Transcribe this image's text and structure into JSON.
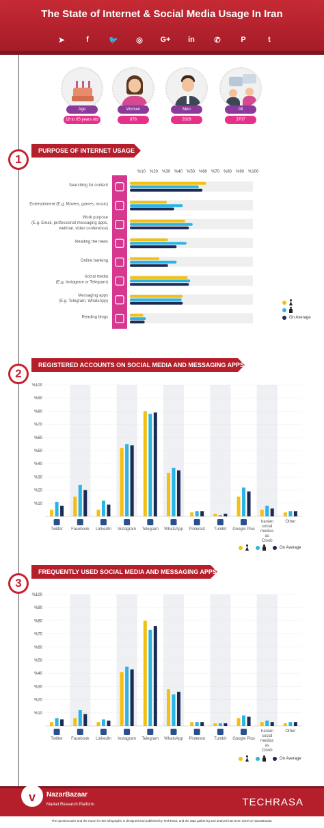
{
  "header": {
    "title": "The State of Internet & Social Media Usage In Iran",
    "social_icons": [
      {
        "name": "telegram-icon",
        "glyph": "➤"
      },
      {
        "name": "facebook-icon",
        "glyph": "f"
      },
      {
        "name": "twitter-icon",
        "glyph": "🐦"
      },
      {
        "name": "instagram-icon",
        "glyph": "◎"
      },
      {
        "name": "google-plus-icon",
        "glyph": "G+"
      },
      {
        "name": "linkedin-icon",
        "glyph": "in"
      },
      {
        "name": "whatsapp-icon",
        "glyph": "✆"
      },
      {
        "name": "pinterest-icon",
        "glyph": "P"
      },
      {
        "name": "tumblr-icon",
        "glyph": "t"
      }
    ]
  },
  "demographics": [
    {
      "label": "Age",
      "value": "18 to 65 years old",
      "icon": "cake-icon"
    },
    {
      "label": "Women",
      "value": "878",
      "icon": "woman-icon"
    },
    {
      "label": "Men",
      "value": "2829",
      "icon": "man-icon"
    },
    {
      "label": "All",
      "value": "3707",
      "icon": "group-icon"
    }
  ],
  "colors": {
    "women": "#f2c012",
    "men": "#2ab4e4",
    "average": "#1b2a55",
    "brand_red": "#b51f2b",
    "purpose_strip": "#d6378f"
  },
  "sections": [
    {
      "number": "1",
      "title": "PURPOSE OF INTERNET USAGE"
    },
    {
      "number": "2",
      "title": "REGISTERED ACCOUNTS ON SOCIAL MEDIA AND MESSAGING APPS"
    },
    {
      "number": "3",
      "title": "FREQUENTLY USED SOCIAL MEDIA AND MESSAGING APPS"
    }
  ],
  "legend": {
    "average_label": "On Average"
  },
  "chart_data": [
    {
      "type": "bar",
      "orientation": "horizontal",
      "axis_ticks": [
        "%10",
        "%20",
        "%30",
        "%40",
        "%50",
        "%60",
        "%70",
        "%80",
        "%90",
        "%100"
      ],
      "xlim": [
        0,
        100
      ],
      "categories": [
        [
          "Searching for content"
        ],
        [
          "Entertainment (E.g. Movies, games, music)"
        ],
        [
          "Work purpose",
          "(E.g. Email, professional messaging apps,",
          "webinar, video conference)"
        ],
        [
          "Reading the news"
        ],
        [
          "Online banking"
        ],
        [
          "Social media",
          "(E.g. Instagram or Telegram)"
        ],
        [
          "Messaging apps",
          "(E.g. Telegram, WhatsApp)"
        ],
        [
          "Reading blogs"
        ]
      ],
      "category_icons": [
        "search-icon",
        "gamepad-icon",
        "work-icon",
        "news-icon",
        "bank-card-icon",
        "share-icon",
        "messaging-icon",
        "blog-icon"
      ],
      "series": [
        {
          "values": [
            62,
            30,
            45,
            31,
            24,
            47,
            43,
            11
          ]
        },
        {
          "values": [
            56,
            43,
            51,
            46,
            38,
            49,
            42,
            13
          ]
        },
        {
          "values": [
            59,
            36,
            48,
            38,
            31,
            48,
            43,
            12
          ]
        }
      ],
      "series_colors": [
        "#f2c012",
        "#2ab4e4",
        "#1b2a55"
      ]
    },
    {
      "type": "bar",
      "axis_ticks": [
        "%10",
        "%20",
        "%30",
        "%40",
        "%50",
        "%60",
        "%70",
        "%80",
        "%90",
        "%100"
      ],
      "ylim": [
        0,
        100
      ],
      "categories": [
        "Twitter",
        "Facebook",
        "LinkedIn",
        "Instagram",
        "Telegram",
        "WhatsApp",
        "Pinterest",
        "Tumblr",
        "Google Plus",
        "Iranian social medias as Cloob",
        "Other"
      ],
      "category_icons": [
        "twitter-icon",
        "facebook-icon",
        "linkedin-icon",
        "instagram-icon",
        "telegram-icon",
        "whatsapp-icon",
        "pinterest-icon",
        "tumblr-icon",
        "google-plus-icon",
        "",
        ""
      ],
      "series": [
        {
          "values": [
            5,
            15,
            5,
            52,
            80,
            33,
            3,
            2,
            15,
            5,
            3
          ]
        },
        {
          "values": [
            11,
            24,
            12,
            55,
            78,
            37,
            4,
            1,
            22,
            8,
            4
          ]
        },
        {
          "values": [
            8,
            20,
            9,
            54,
            79,
            35,
            4,
            2,
            19,
            6,
            4
          ]
        }
      ],
      "series_colors": [
        "#f2c012",
        "#2ab4e4",
        "#1b2a55"
      ]
    },
    {
      "type": "bar",
      "axis_ticks": [
        "%10",
        "%20",
        "%30",
        "%40",
        "%50",
        "%60",
        "%70",
        "%80",
        "%90",
        "%100"
      ],
      "ylim": [
        0,
        100
      ],
      "categories": [
        "Twitter",
        "Facebook",
        "LinkedIn",
        "Instagram",
        "Telegram",
        "WhatsApp",
        "Pinterest",
        "Tumblr",
        "Google Plus",
        "Iranian social medias as Cloob",
        "Other"
      ],
      "category_icons": [
        "twitter-icon",
        "facebook-icon",
        "linkedin-icon",
        "instagram-icon",
        "telegram-icon",
        "whatsapp-icon",
        "pinterest-icon",
        "tumblr-icon",
        "google-plus-icon",
        "",
        ""
      ],
      "series": [
        {
          "values": [
            3,
            6,
            3,
            41,
            80,
            28,
            3,
            2,
            6,
            3,
            2
          ]
        },
        {
          "values": [
            6,
            12,
            5,
            45,
            73,
            24,
            3,
            2,
            8,
            4,
            3
          ]
        },
        {
          "values": [
            5,
            9,
            4,
            43,
            76,
            26,
            3,
            2,
            7,
            3,
            3
          ]
        }
      ],
      "series_colors": [
        "#f2c012",
        "#2ab4e4",
        "#1b2a55"
      ]
    }
  ],
  "footer": {
    "brand": "NazarBazaar",
    "brand_logo": "v",
    "brand_subtitle": "Market Research Platform",
    "partner": "TECHRASA",
    "note": "The questionnaire and the report for this infographic is designed and published by TechRasa, and the data gathering and analysis has been done by NazarBazaar."
  }
}
